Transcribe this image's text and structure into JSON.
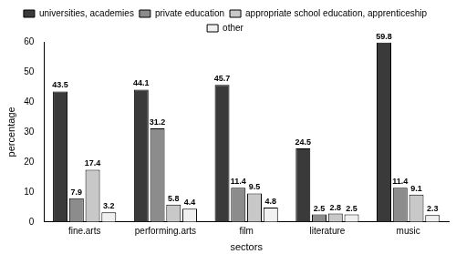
{
  "chart_data": {
    "type": "bar",
    "x_label": "sectors",
    "y_label": "percentage",
    "categories": [
      "fine.arts",
      "performing.arts",
      "film",
      "literature",
      "music"
    ],
    "series": [
      {
        "name": "universities, academies",
        "color": "#3a3a3a",
        "values": [
          43.5,
          44.1,
          45.7,
          24.5,
          59.8
        ]
      },
      {
        "name": "private education",
        "color": "#8c8c8c",
        "values": [
          7.9,
          31.2,
          11.4,
          2.5,
          11.4
        ]
      },
      {
        "name": "appropriate school education, apprenticeship",
        "color": "#c8c8c8",
        "values": [
          17.4,
          5.8,
          9.5,
          2.8,
          9.1
        ]
      },
      {
        "name": "other",
        "color": "#f0f0f0",
        "values": [
          3.2,
          4.4,
          4.8,
          2.5,
          2.3
        ]
      }
    ],
    "ylim": [
      0,
      60
    ],
    "yticks": [
      0,
      10,
      20,
      30,
      40,
      50,
      60
    ],
    "grid": false,
    "legend": "top",
    "data_labels": true
  }
}
